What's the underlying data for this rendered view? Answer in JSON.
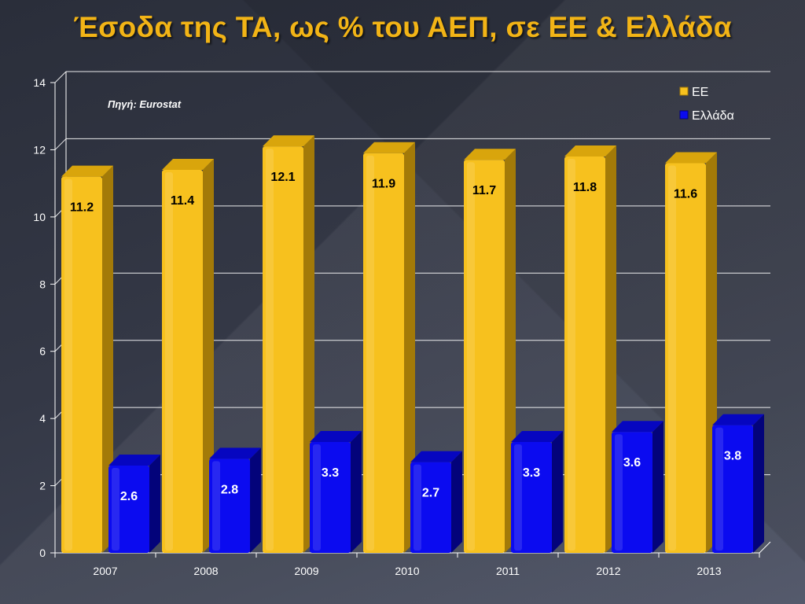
{
  "slide": {
    "title": "Έσοδα της ΤΑ, ως % του ΑΕΠ, σε ΕΕ & Ελλάδα",
    "source_note": "Πηγή: Eurostat"
  },
  "colors": {
    "title": "#f2b416",
    "ee_bar": "#f7c11e",
    "ee_bar_side": "#a37a08",
    "ee_bar_top": "#d9a50c",
    "greece_bar": "#0b0bf0",
    "greece_bar_side": "#03037a",
    "greece_bar_top": "#0606c0",
    "grid": "#ffffff"
  },
  "chart_data": {
    "type": "bar",
    "categories": [
      "2007",
      "2008",
      "2009",
      "2010",
      "2011",
      "2012",
      "2013"
    ],
    "series": [
      {
        "name": "ΕΕ",
        "values": [
          11.2,
          11.4,
          12.1,
          11.9,
          11.7,
          11.8,
          11.6
        ],
        "data_labels": [
          "11.2",
          "11.4",
          "12.1",
          "11.9",
          "11.7",
          "11.8",
          "11.6"
        ]
      },
      {
        "name": "Ελλάδα",
        "values": [
          2.6,
          2.8,
          3.3,
          2.7,
          3.3,
          3.6,
          3.8
        ],
        "data_labels": [
          "2.6",
          "2.8",
          "3.3",
          "2.7",
          "3.3",
          "3.6",
          "3.8"
        ]
      }
    ],
    "y_ticks": [
      "0",
      "2",
      "4",
      "6",
      "8",
      "10",
      "12",
      "14"
    ],
    "ylim": [
      0,
      14
    ],
    "grid": true,
    "legend_position": "top-right",
    "style": "3d-columns"
  }
}
